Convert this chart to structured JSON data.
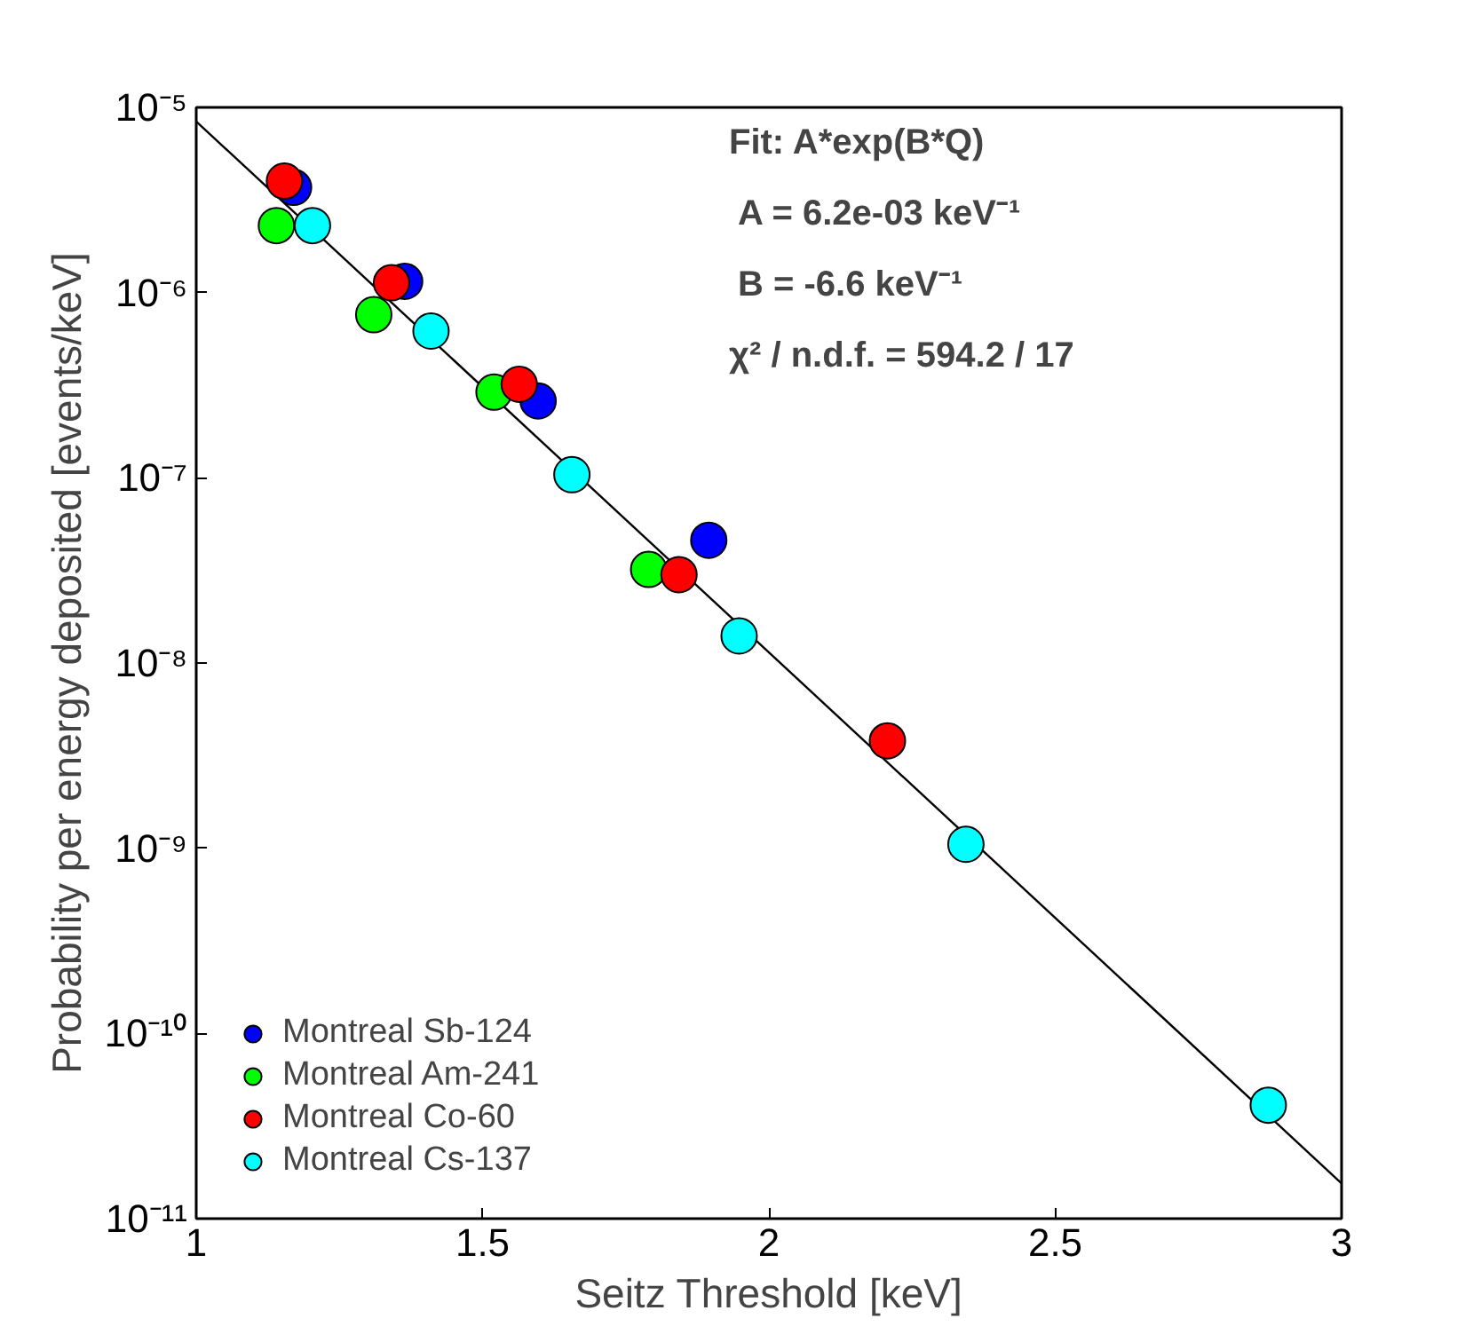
{
  "chart_data": {
    "type": "scatter",
    "xlabel": "Seitz Threshold [keV]",
    "ylabel": "Probability per energy deposited [events/keV]",
    "log": "y",
    "grid": false,
    "legend": "bottom left",
    "marker": "circle",
    "xlim": [
      1,
      3
    ],
    "xticks": [
      1,
      1.5,
      2,
      2.5,
      3
    ],
    "ylim": [
      1e-11,
      1e-05
    ],
    "yticks": [
      {
        "value": 1e-11,
        "label": "10⁻¹¹"
      },
      {
        "value": 1e-10,
        "label": "10⁻¹⁰"
      },
      {
        "value": 1e-09,
        "label": "10⁻⁹"
      },
      {
        "value": 1e-08,
        "label": "10⁻⁸"
      },
      {
        "value": 1e-07,
        "label": "10⁻⁷"
      },
      {
        "value": 1e-06,
        "label": "10⁻⁶"
      },
      {
        "value": 1e-05,
        "label": "10⁻⁵"
      }
    ],
    "annotations": [
      "Fit: A*exp(B*Q)",
      "A = 6.2e-03 keV⁻¹",
      "B = -6.6 keV⁻¹",
      "χ² / n.d.f. = 594.2 / 17"
    ],
    "series": [
      {
        "type": "line",
        "marker": "none",
        "color": "#000000",
        "x": [
          1,
          3
        ],
        "values": [
          8.4e-06,
          1.55e-11
        ]
      },
      {
        "name": "Montreal Sb-124",
        "color": "#0000ff",
        "x": [
          1.17,
          1.364,
          1.597,
          1.895
        ],
        "values": [
          3.7e-06,
          1.15e-06,
          2.6e-07,
          4.6e-08
        ]
      },
      {
        "name": "Montreal Am-241",
        "color": "#00ff00",
        "x": [
          1.14,
          1.31,
          1.52,
          1.79
        ],
        "values": [
          2.3e-06,
          7.6e-07,
          2.9e-07,
          3.2e-08
        ]
      },
      {
        "name": "Montreal Co-60",
        "color": "#ff0000",
        "x": [
          1.154,
          1.341,
          1.564,
          1.843,
          2.207
        ],
        "values": [
          4e-06,
          1.13e-06,
          3.2e-07,
          3e-08,
          3.8e-09
        ]
      },
      {
        "name": "Montreal Cs-137",
        "color": "#00ffff",
        "x": [
          1.203,
          1.41,
          1.656,
          1.948,
          2.344,
          2.872
        ],
        "values": [
          2.3e-06,
          6.2e-07,
          1.04e-07,
          1.4e-08,
          1.05e-09,
          4.1e-11
        ]
      }
    ]
  }
}
